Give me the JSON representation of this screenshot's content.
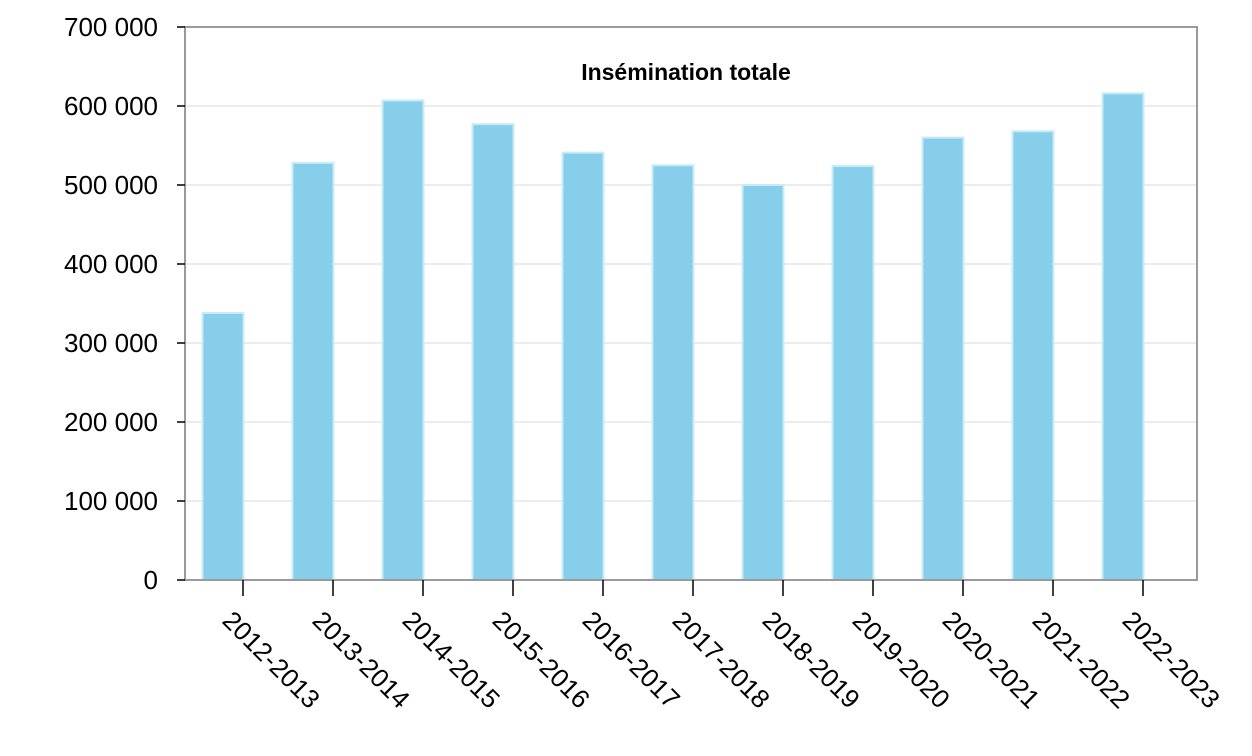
{
  "chart_data": {
    "type": "bar",
    "title": "Insémination totale",
    "xlabel": "",
    "ylabel": "",
    "categories": [
      "2012-2013",
      "2013-2014",
      "2014-2015",
      "2015-2016",
      "2016-2017",
      "2017-2018",
      "2018-2019",
      "2019-2020",
      "2020-2021",
      "2021-2022",
      "2022-2023"
    ],
    "values": [
      338000,
      528000,
      607000,
      577000,
      541000,
      525000,
      500000,
      524000,
      560000,
      568000,
      616000
    ],
    "ylim": [
      0,
      700000
    ],
    "yticks": [
      0,
      100000,
      200000,
      300000,
      400000,
      500000,
      600000,
      700000
    ],
    "ytick_labels": [
      "0",
      "100 000",
      "200 000",
      "300 000",
      "400 000",
      "500 000",
      "600 000",
      "700 000"
    ],
    "grid": true,
    "legend": "none",
    "colors": {
      "bar": "#87CEEB",
      "bar_edge": "#c9ebf7",
      "grid": "#e6e6e6",
      "frame": "#9a9a9a"
    }
  }
}
